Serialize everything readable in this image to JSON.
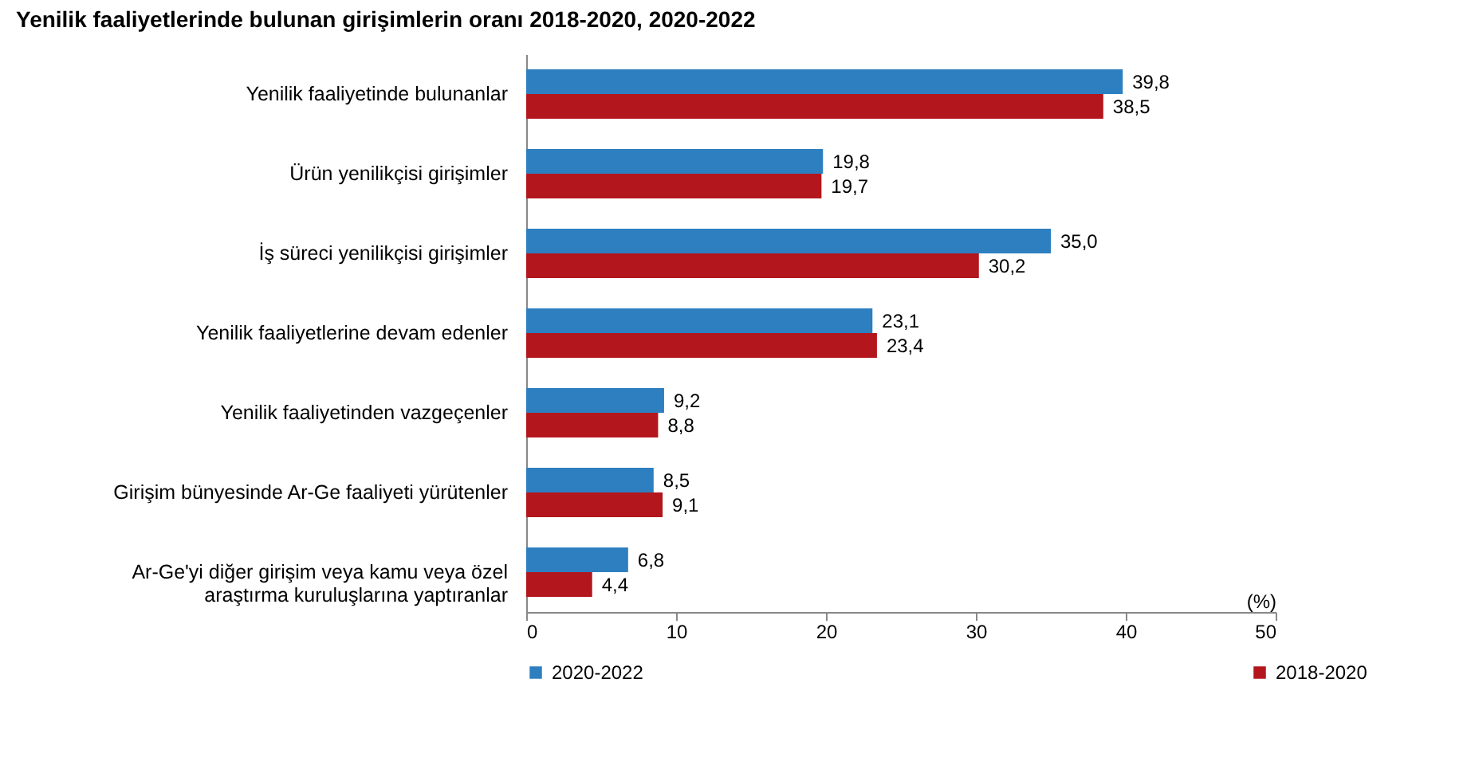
{
  "chart_data": {
    "type": "bar",
    "orientation": "horizontal",
    "title": "Yenilik faaliyetlerinde bulunan girişimlerin oranı 2018-2020, 2020-2022",
    "xlabel": "(%)",
    "categories": [
      "Yenilik faaliyetinde bulunanlar",
      "Ürün yenilikçisi girişimler",
      "İş süreci yenilikçisi girişimler",
      "Yenilik faaliyetlerine devam edenler",
      "Yenilik faaliyetinden vazgeçenler",
      "Girişim bünyesinde Ar-Ge faaliyeti yürütenler",
      "Ar-Ge'yi diğer girişim veya kamu veya özel araştırma kuruluşlarına yaptıranlar"
    ],
    "series": [
      {
        "name": "2020-2022",
        "color": "#2e7fc0",
        "values": [
          39.8,
          19.8,
          35.0,
          23.1,
          9.2,
          8.5,
          6.8
        ],
        "value_labels": [
          "39,8",
          "19,8",
          "35,0",
          "23,1",
          "9,2",
          "8,5",
          "6,8"
        ]
      },
      {
        "name": "2018-2020",
        "color": "#b3161c",
        "values": [
          38.5,
          19.7,
          30.2,
          23.4,
          8.8,
          9.1,
          4.4
        ],
        "value_labels": [
          "38,5",
          "19,7",
          "30,2",
          "23,4",
          "8,8",
          "9,1",
          "4,4"
        ]
      }
    ],
    "xlim": [
      0,
      50
    ],
    "xticks": [
      0,
      10,
      20,
      30,
      40,
      50
    ],
    "grid": false,
    "legend": "bottom"
  }
}
